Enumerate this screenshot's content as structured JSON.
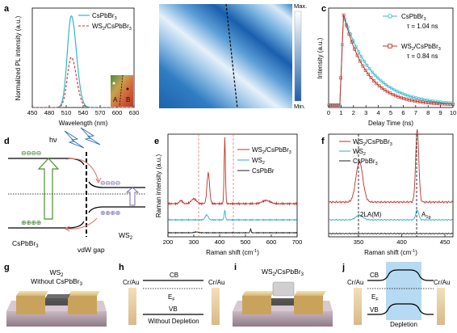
{
  "panels": {
    "a": {
      "letter": "a",
      "ylabel": "Normalized PL intensity (a.u.)",
      "xlabel": "Wavelength (nm)",
      "ticks": [
        "450",
        "480",
        "510",
        "540",
        "570",
        "600",
        "630"
      ],
      "legend": [
        {
          "name": "CsPbBr3_label",
          "text": "CsPbBr"
        },
        {
          "text": "WS"
        }
      ],
      "leg1_main": "CsPbBr",
      "leg1_sub": "3",
      "leg2_a": "WS",
      "leg2_s1": "2",
      "leg2_b": "/CsPbBr",
      "leg2_s2": "3",
      "inset_a": "A",
      "inset_b": "B"
    },
    "b": {
      "letter": "b",
      "max": "Max.",
      "min": "Min."
    },
    "c": {
      "letter": "c",
      "ylabel": "Intensity (a.u.)",
      "xlabel": "Delay Time (ns)",
      "ticks": [
        "0",
        "1",
        "2",
        "3",
        "4",
        "5",
        "6",
        "7",
        "8",
        "9",
        "10"
      ],
      "s1_main": "CsPbBr",
      "s1_sub": "3",
      "s1_tau": "τ = 1.04 ns",
      "s2_a": "WS",
      "s2_s1": "2",
      "s2_b": "/CsPbBr",
      "s2_s2": "3",
      "s2_tau": "τ = 0.84 ns"
    },
    "d": {
      "letter": "d",
      "hv": "hν",
      "left": "CsPbBr",
      "left_sub": "3",
      "right": "WS",
      "right_sub": "2",
      "gap": "vdW gap",
      "minus": "⊖⊖⊖⊖",
      "plus": "⊕⊕⊕⊕"
    },
    "e": {
      "letter": "e",
      "ylabel": "Raman intensity (a.u.)",
      "xlabel": "Raman shift (cm",
      "xlabel_sup": "-1",
      "xlabel_end": ")",
      "ticks": [
        "200",
        "300",
        "400",
        "500",
        "600",
        "700"
      ],
      "l1_a": "WS",
      "l1_s1": "2",
      "l1_b": "/CsPbBr",
      "l1_s2": "3",
      "l2_a": "WS",
      "l2_s": "2",
      "l3": "CsPbBr"
    },
    "f": {
      "letter": "f",
      "xlabel": "Raman shift (cm",
      "xlabel_sup": "-1",
      "xlabel_end": ")",
      "ticks": [
        "350",
        "400",
        "450"
      ],
      "l1_a": "WS",
      "l1_s1": "2",
      "l1_b": "/CsPbBr",
      "l1_s2": "3",
      "l2_a": "WS",
      "l2_s": "2",
      "l3_a": "CsPbBr",
      "l3_s": "3",
      "peak1": "2LA(M)",
      "peak2": "A",
      "peak2_sub": "1g"
    },
    "g": {
      "letter": "g",
      "t1_a": "WS",
      "t1_s": "2",
      "t2_a": "Without CsPbBr",
      "t2_s": "3"
    },
    "h": {
      "letter": "h",
      "left": "Cr/Au",
      "right": "Cr/Au",
      "cb": "CB",
      "ef": "E",
      "ef_sub": "F",
      "vb": "VB",
      "caption": "Without Depletion"
    },
    "i": {
      "letter": "i",
      "t1_a": "WS",
      "t1_s1": "2",
      "t1_b": "/CsPbBr",
      "t1_s2": "3"
    },
    "j": {
      "letter": "j",
      "left": "Cr/Au",
      "right": "Cr/Au",
      "cb": "CB",
      "ef": "E",
      "ef_sub": "F",
      "vb": "VB",
      "caption": "Depletion"
    }
  },
  "chart_data": [
    {
      "type": "line",
      "panel": "a",
      "xlabel": "Wavelength (nm)",
      "ylabel": "Normalized PL intensity (a.u.)",
      "xlim": [
        450,
        630
      ],
      "ylim": [
        0,
        1.05
      ],
      "series": [
        {
          "name": "CsPbBr3",
          "peak_x": 519,
          "peak_y": 1.0
        },
        {
          "name": "WS2/CsPbBr3",
          "peak_x": 519,
          "peak_y": 0.55
        }
      ]
    },
    {
      "type": "heatmap",
      "panel": "b",
      "scale": [
        "Min.",
        "Max."
      ]
    },
    {
      "type": "line",
      "panel": "c",
      "xlabel": "Delay Time (ns)",
      "ylabel": "Intensity (a.u.)",
      "xlim": [
        0,
        10
      ],
      "series": [
        {
          "name": "CsPbBr3",
          "tau_ns": 1.04
        },
        {
          "name": "WS2/CsPbBr3",
          "tau_ns": 0.84
        }
      ]
    },
    {
      "type": "line",
      "panel": "e",
      "xlabel": "Raman shift (cm-1)",
      "ylabel": "Raman intensity (a.u.)",
      "xlim": [
        200,
        700
      ],
      "series": [
        {
          "name": "WS2/CsPbBr3"
        },
        {
          "name": "WS2"
        },
        {
          "name": "CsPbBr"
        }
      ]
    },
    {
      "type": "line",
      "panel": "f",
      "xlabel": "Raman shift (cm-1)",
      "xlim": [
        320,
        460
      ],
      "series": [
        {
          "name": "WS2/CsPbBr3"
        },
        {
          "name": "WS2"
        },
        {
          "name": "CsPbBr3"
        }
      ],
      "peaks": [
        {
          "label": "2LA(M)",
          "x": 351
        },
        {
          "label": "A1g",
          "x": 418
        }
      ]
    }
  ]
}
